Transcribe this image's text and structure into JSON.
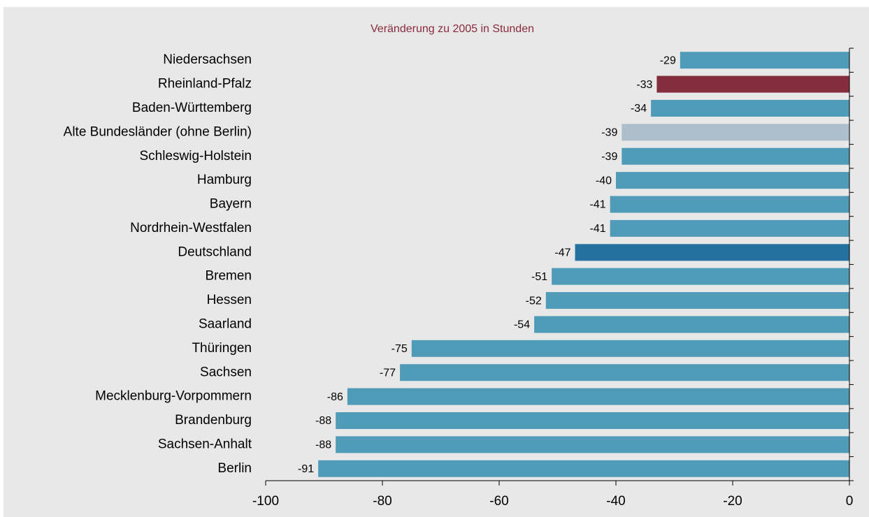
{
  "chart_data": {
    "type": "bar",
    "orientation": "horizontal",
    "title": "Veränderung zu 2005 in Stunden",
    "categories": [
      "Niedersachsen",
      "Rheinland-Pfalz",
      "Baden-Württemberg",
      "Alte Bundesländer (ohne Berlin)",
      "Schleswig-Holstein",
      "Hamburg",
      "Bayern",
      "Nordrhein-Westfalen",
      "Deutschland",
      "Bremen",
      "Hessen",
      "Saarland",
      "Thüringen",
      "Sachsen",
      "Mecklenburg-Vorpommern",
      "Brandenburg",
      "Sachsen-Anhalt",
      "Berlin"
    ],
    "values": [
      -29,
      -33,
      -34,
      -39,
      -39,
      -40,
      -41,
      -41,
      -47,
      -51,
      -52,
      -54,
      -75,
      -77,
      -86,
      -88,
      -88,
      -91
    ],
    "colors": [
      "#4f9bb8",
      "#842d3c",
      "#4f9bb8",
      "#adbecc",
      "#4f9bb8",
      "#4f9bb8",
      "#4f9bb8",
      "#4f9bb8",
      "#2471a0",
      "#4f9bb8",
      "#4f9bb8",
      "#4f9bb8",
      "#4f9bb8",
      "#4f9bb8",
      "#4f9bb8",
      "#4f9bb8",
      "#4f9bb8",
      "#4f9bb8"
    ],
    "xlim": [
      -100,
      0
    ],
    "xticks": [
      -100,
      -80,
      -60,
      -40,
      -20,
      0
    ],
    "grid": false
  }
}
